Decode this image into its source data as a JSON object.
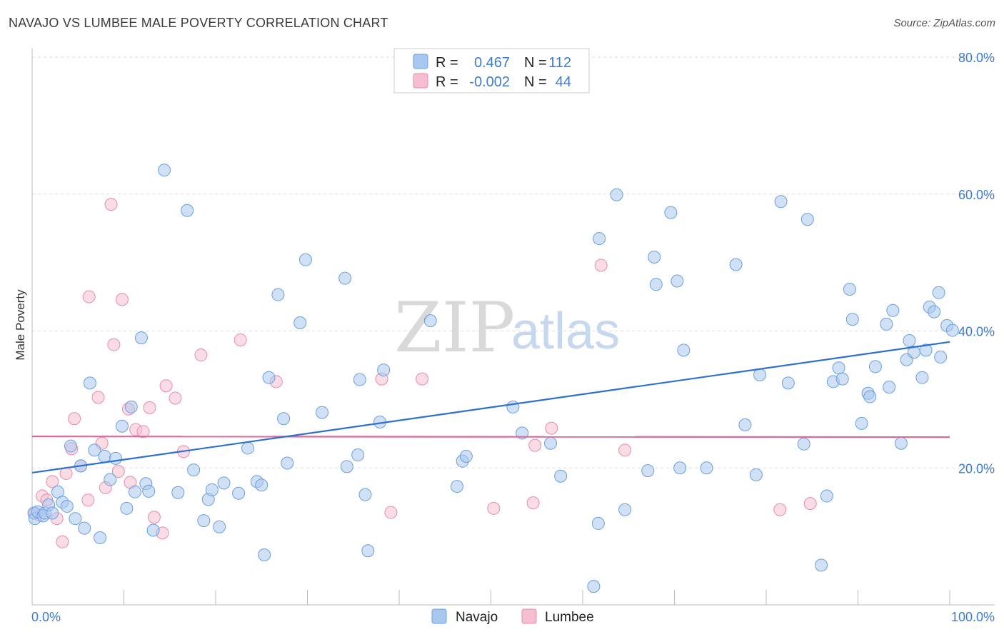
{
  "title": "NAVAJO VS LUMBEE MALE POVERTY CORRELATION CHART",
  "source": "Source: ZipAtlas.com",
  "watermark": {
    "zip": "ZIP",
    "atlas": "atlas"
  },
  "colors": {
    "navajo_fill": "#a9c8ef",
    "navajo_stroke": "#6a9fe0",
    "navajo_line": "#2f6fd0",
    "lumbee_fill": "#f6bfd0",
    "lumbee_stroke": "#e98bab",
    "lumbee_line": "#e0679a",
    "grid": "#dddddd",
    "tick_text": "#3d7bd0"
  },
  "legend": {
    "rows": [
      {
        "r_label": "R =",
        "r_value": "0.467",
        "n_label": "N =",
        "n_value": "112"
      },
      {
        "r_label": "R =",
        "r_value": "-0.002",
        "n_label": "N =",
        "n_value": "44"
      }
    ]
  },
  "bottom_legend": {
    "navajo": "Navajo",
    "lumbee": "Lumbee"
  },
  "chart_data": {
    "type": "scatter",
    "title": "NAVAJO VS LUMBEE MALE POVERTY CORRELATION CHART",
    "xlabel": "",
    "ylabel": "Male Poverty",
    "xlim": [
      0,
      100
    ],
    "ylim": [
      0,
      80
    ],
    "x_tick_labels": [
      "0.0%",
      "100.0%"
    ],
    "y_ticks": [
      20,
      40,
      60,
      80
    ],
    "y_tick_labels": [
      "20.0%",
      "40.0%",
      "60.0%",
      "80.0%"
    ],
    "grid": true,
    "legend_position": "top-center",
    "series": [
      {
        "name": "Navajo",
        "r": 0.467,
        "n": 112,
        "trend": {
          "x": [
            0,
            100
          ],
          "y": [
            19.3,
            38.4
          ]
        },
        "points": [
          [
            0.2,
            13.4
          ],
          [
            0.3,
            12.6
          ],
          [
            0.6,
            13.6
          ],
          [
            1.2,
            13.0
          ],
          [
            1.4,
            13.4
          ],
          [
            1.8,
            14.6
          ],
          [
            2.2,
            13.4
          ],
          [
            2.8,
            16.5
          ],
          [
            3.3,
            15.0
          ],
          [
            3.8,
            14.4
          ],
          [
            4.2,
            23.2
          ],
          [
            4.7,
            12.6
          ],
          [
            5.3,
            20.3
          ],
          [
            5.7,
            11.2
          ],
          [
            6.3,
            32.4
          ],
          [
            6.8,
            22.6
          ],
          [
            7.4,
            9.8
          ],
          [
            7.9,
            21.7
          ],
          [
            8.5,
            18.3
          ],
          [
            9.1,
            21.4
          ],
          [
            9.8,
            26.1
          ],
          [
            10.3,
            14.1
          ],
          [
            10.8,
            28.9
          ],
          [
            11.2,
            16.5
          ],
          [
            11.9,
            39.0
          ],
          [
            12.4,
            17.7
          ],
          [
            12.7,
            16.6
          ],
          [
            13.2,
            10.9
          ],
          [
            14.4,
            63.5
          ],
          [
            15.9,
            16.4
          ],
          [
            16.9,
            57.6
          ],
          [
            17.6,
            19.7
          ],
          [
            18.7,
            12.3
          ],
          [
            19.2,
            15.4
          ],
          [
            19.6,
            16.8
          ],
          [
            20.4,
            11.4
          ],
          [
            20.9,
            17.8
          ],
          [
            22.5,
            16.3
          ],
          [
            23.5,
            22.9
          ],
          [
            24.5,
            18.0
          ],
          [
            25.0,
            17.5
          ],
          [
            25.3,
            7.3
          ],
          [
            25.8,
            33.2
          ],
          [
            26.8,
            45.3
          ],
          [
            27.4,
            27.2
          ],
          [
            27.8,
            20.7
          ],
          [
            29.2,
            41.2
          ],
          [
            29.8,
            50.4
          ],
          [
            31.6,
            28.1
          ],
          [
            34.1,
            47.7
          ],
          [
            34.3,
            20.2
          ],
          [
            35.5,
            21.9
          ],
          [
            35.7,
            32.9
          ],
          [
            36.3,
            16.1
          ],
          [
            36.6,
            7.9
          ],
          [
            37.9,
            26.7
          ],
          [
            38.3,
            34.3
          ],
          [
            43.4,
            41.5
          ],
          [
            46.3,
            17.3
          ],
          [
            46.9,
            21.0
          ],
          [
            47.3,
            21.7
          ],
          [
            52.4,
            28.9
          ],
          [
            53.4,
            25.1
          ],
          [
            56.5,
            23.6
          ],
          [
            57.6,
            18.8
          ],
          [
            61.2,
            2.7
          ],
          [
            61.7,
            11.9
          ],
          [
            61.8,
            53.5
          ],
          [
            63.7,
            59.9
          ],
          [
            64.6,
            13.9
          ],
          [
            67.1,
            19.6
          ],
          [
            67.8,
            50.8
          ],
          [
            68.0,
            46.8
          ],
          [
            69.6,
            57.3
          ],
          [
            70.3,
            47.3
          ],
          [
            70.6,
            20.0
          ],
          [
            71.0,
            37.2
          ],
          [
            73.5,
            20.0
          ],
          [
            76.7,
            49.7
          ],
          [
            77.7,
            26.3
          ],
          [
            78.9,
            19.0
          ],
          [
            79.3,
            33.6
          ],
          [
            81.6,
            58.9
          ],
          [
            82.4,
            32.4
          ],
          [
            84.1,
            23.5
          ],
          [
            84.5,
            56.3
          ],
          [
            86.0,
            5.8
          ],
          [
            86.6,
            15.9
          ],
          [
            87.3,
            32.6
          ],
          [
            87.9,
            34.6
          ],
          [
            88.3,
            33.0
          ],
          [
            89.1,
            46.1
          ],
          [
            89.4,
            41.7
          ],
          [
            90.4,
            26.5
          ],
          [
            91.1,
            30.9
          ],
          [
            91.3,
            30.4
          ],
          [
            91.9,
            34.8
          ],
          [
            93.1,
            41.0
          ],
          [
            93.4,
            31.8
          ],
          [
            93.8,
            43.0
          ],
          [
            94.7,
            23.6
          ],
          [
            95.3,
            35.8
          ],
          [
            95.6,
            38.6
          ],
          [
            96.1,
            36.9
          ],
          [
            97.0,
            33.2
          ],
          [
            97.4,
            37.2
          ],
          [
            97.8,
            43.5
          ],
          [
            98.3,
            42.8
          ],
          [
            98.8,
            45.6
          ],
          [
            99.0,
            36.2
          ],
          [
            99.7,
            40.8
          ],
          [
            100.3,
            40.1
          ]
        ]
      },
      {
        "name": "Lumbee",
        "r": -0.002,
        "n": 44,
        "trend": {
          "x": [
            0,
            100
          ],
          "y": [
            24.6,
            24.5
          ]
        },
        "points": [
          [
            0.3,
            13.4
          ],
          [
            1.1,
            15.9
          ],
          [
            1.6,
            15.3
          ],
          [
            2.2,
            18.0
          ],
          [
            2.7,
            12.6
          ],
          [
            3.7,
            19.2
          ],
          [
            4.3,
            22.8
          ],
          [
            4.6,
            27.2
          ],
          [
            5.3,
            20.3
          ],
          [
            6.2,
            45.0
          ],
          [
            6.1,
            15.3
          ],
          [
            7.2,
            30.3
          ],
          [
            7.6,
            23.6
          ],
          [
            8.0,
            17.1
          ],
          [
            8.6,
            58.5
          ],
          [
            8.9,
            38.0
          ],
          [
            9.4,
            19.5
          ],
          [
            9.8,
            44.6
          ],
          [
            10.5,
            28.6
          ],
          [
            10.7,
            17.9
          ],
          [
            11.3,
            25.6
          ],
          [
            12.1,
            25.3
          ],
          [
            12.8,
            28.8
          ],
          [
            13.3,
            12.8
          ],
          [
            14.2,
            10.5
          ],
          [
            14.6,
            32.0
          ],
          [
            15.6,
            30.2
          ],
          [
            16.5,
            22.4
          ],
          [
            18.4,
            36.5
          ],
          [
            22.7,
            38.7
          ],
          [
            26.6,
            32.6
          ],
          [
            38.1,
            33.0
          ],
          [
            39.1,
            13.5
          ],
          [
            42.5,
            33.0
          ],
          [
            50.3,
            14.1
          ],
          [
            54.6,
            14.9
          ],
          [
            54.8,
            23.3
          ],
          [
            56.6,
            25.8
          ],
          [
            62.0,
            49.6
          ],
          [
            64.6,
            22.6
          ],
          [
            81.5,
            13.9
          ],
          [
            84.8,
            14.8
          ],
          [
            3.3,
            9.2
          ],
          [
            0.8,
            13.1
          ]
        ]
      }
    ]
  }
}
